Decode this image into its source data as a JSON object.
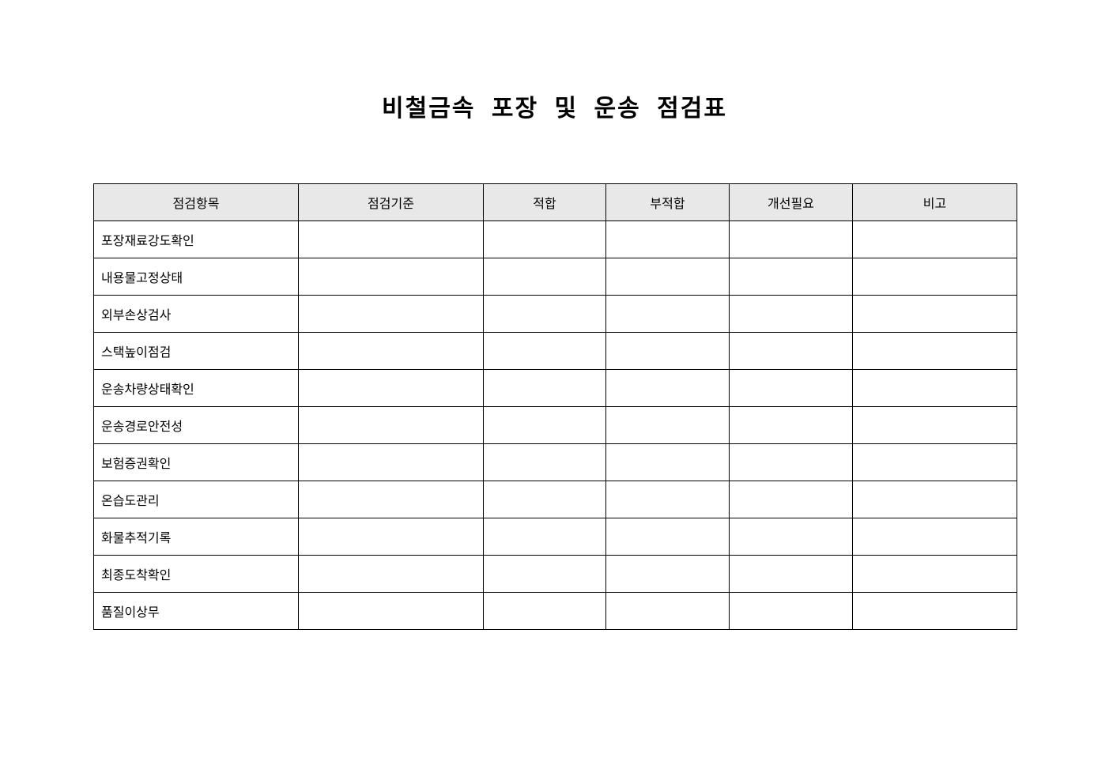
{
  "title": "비철금속 포장 및 운송 점검표",
  "table": {
    "headers": [
      "점검항목",
      "점검기준",
      "적합",
      "부적합",
      "개선필요",
      "비고"
    ],
    "rows": [
      "포장재료강도확인",
      "내용물고정상태",
      "외부손상검사",
      "스택높이점검",
      "운송차량상태확인",
      "운송경로안전성",
      "보험증권확인",
      "온습도관리",
      "화물추적기록",
      "최종도착확인",
      "품질이상무"
    ]
  }
}
